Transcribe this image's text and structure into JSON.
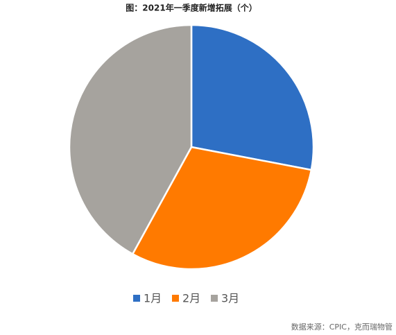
{
  "chart_data": {
    "type": "pie",
    "title": "图：2021年一季度新增拓展（个）",
    "categories": [
      "1月",
      "2月",
      "3月"
    ],
    "values": [
      28,
      30,
      42
    ],
    "colors": [
      "#2e6fc4",
      "#ff7a00",
      "#a6a39e"
    ],
    "legend": "bottom",
    "source": "数据来源：CPIC，克而瑞物管"
  }
}
